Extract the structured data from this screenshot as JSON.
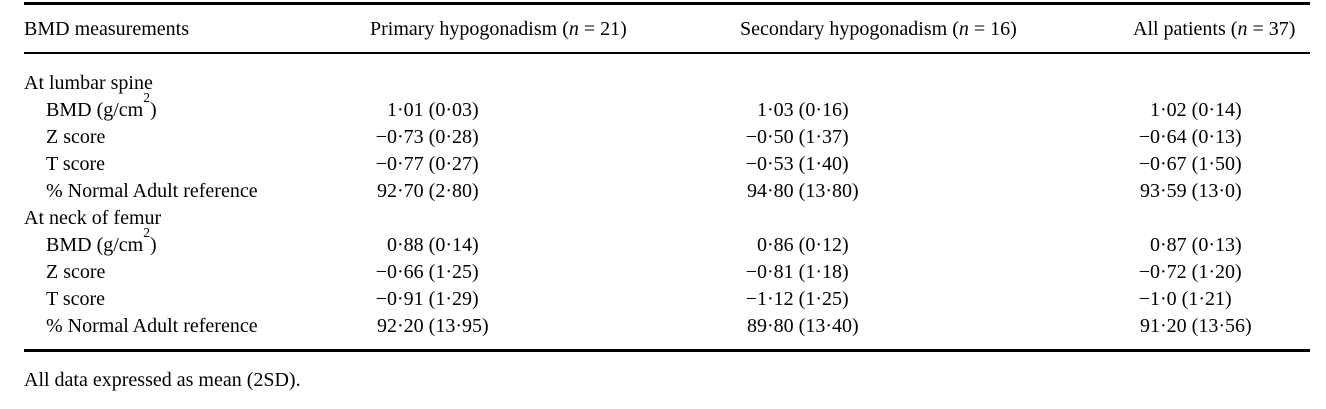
{
  "colors": {
    "text": "#000000",
    "background": "#ffffff",
    "rule": "#000000"
  },
  "table": {
    "header": {
      "label": "BMD measurements",
      "groups": [
        {
          "name": "primary",
          "pre": "Primary hypogonadism (",
          "n": "n",
          "post": " = 21)"
        },
        {
          "name": "secondary",
          "pre": "Secondary hypogonadism (",
          "n": "n",
          "post": " = 16)"
        },
        {
          "name": "all",
          "pre": "All patients (",
          "n": "n",
          "post": " = 37)"
        }
      ]
    },
    "sections": [
      {
        "title": "At lumbar spine",
        "rows": [
          {
            "label": {
              "pre": "BMD (g/cm",
              "sup": "2",
              "post": ")"
            },
            "values": [
              "1·01 (0·03)",
              "1·03 (0·16)",
              "1·02 (0·14)"
            ]
          },
          {
            "label": {
              "pre": "Z score"
            },
            "values": [
              "−0·73 (0·28)",
              "−0·50 (1·37)",
              "−0·64 (0·13)"
            ]
          },
          {
            "label": {
              "pre": "T score"
            },
            "values": [
              "−0·77 (0·27)",
              "−0·53 (1·40)",
              "−0·67 (1·50)"
            ]
          },
          {
            "label": {
              "pre": "% Normal Adult reference"
            },
            "values": [
              "92·70 (2·80)",
              "94·80 (13·80)",
              "93·59 (13·0)"
            ]
          }
        ]
      },
      {
        "title": "At neck of femur",
        "rows": [
          {
            "label": {
              "pre": "BMD (g/cm",
              "sup": "2",
              "post": ")"
            },
            "values": [
              "0·88 (0·14)",
              "0·86 (0·12)",
              "0·87 (0·13)"
            ]
          },
          {
            "label": {
              "pre": "Z score"
            },
            "values": [
              "−0·66 (1·25)",
              "−0·81 (1·18)",
              "−0·72 (1·20)"
            ]
          },
          {
            "label": {
              "pre": "T score"
            },
            "values": [
              "−0·91 (1·29)",
              "−1·12 (1·25)",
              "−1·0 (1·21)"
            ]
          },
          {
            "label": {
              "pre": "% Normal Adult reference"
            },
            "values": [
              "92·20 (13·95)",
              "89·80 (13·40)",
              "91·20 (13·56)"
            ]
          }
        ]
      }
    ],
    "footnote": "All data expressed as mean (2SD)."
  }
}
